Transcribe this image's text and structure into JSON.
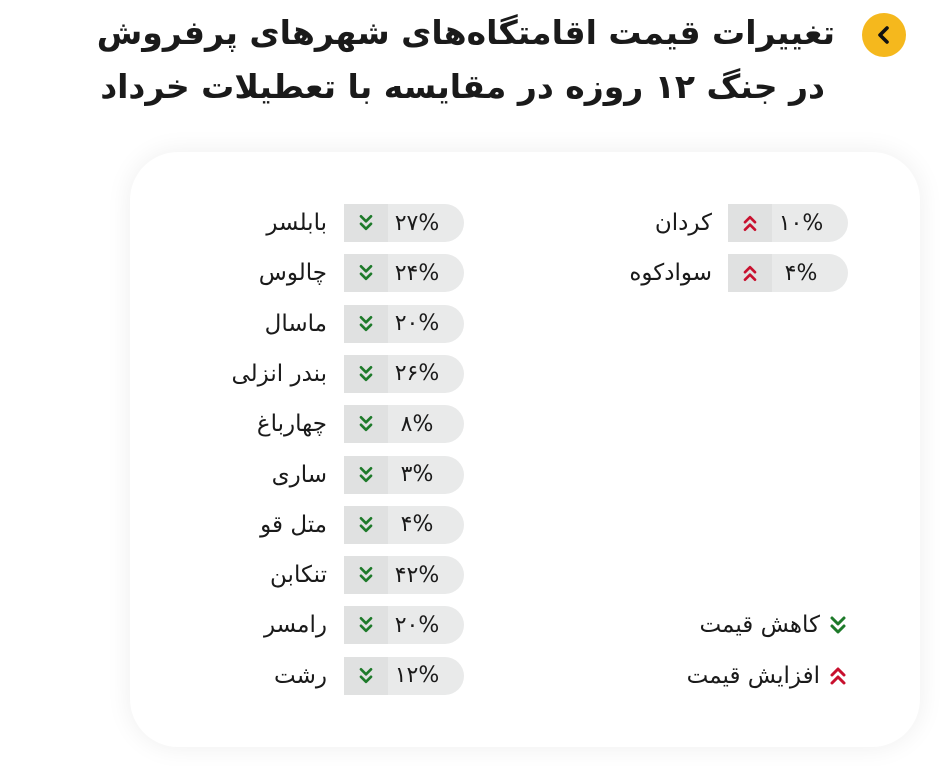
{
  "header": {
    "title_line1": "تغییرات قیمت اقامتگاه‌های شهرهای پرفروش",
    "title_line2": "در جنگ ۱۲ روزه در مقایسه با تعطیلات خرداد",
    "back_icon": "chevron-left-icon",
    "accent_color": "#f5b81d"
  },
  "chart_data": {
    "type": "table",
    "title": "تغییرات قیمت اقامتگاه‌های شهرهای پرفروش در جنگ ۱۲ روزه در مقایسه با تعطیلات خرداد",
    "decrease": [
      {
        "city": "بابلسر",
        "value": 27,
        "label": "۲۷%"
      },
      {
        "city": "چالوس",
        "value": 24,
        "label": "۲۴%"
      },
      {
        "city": "ماسال",
        "value": 20,
        "label": "۲۰%"
      },
      {
        "city": "بندر انزلی",
        "value": 26,
        "label": "۲۶%"
      },
      {
        "city": "چهارباغ",
        "value": 8,
        "label": "۸%"
      },
      {
        "city": "ساری",
        "value": 3,
        "label": "۳%"
      },
      {
        "city": "متل قو",
        "value": 4,
        "label": "۴%"
      },
      {
        "city": "تنکابن",
        "value": 42,
        "label": "۴۲%"
      },
      {
        "city": "رامسر",
        "value": 20,
        "label": "۲۰%"
      },
      {
        "city": "رشت",
        "value": 12,
        "label": "۱۲%"
      }
    ],
    "increase": [
      {
        "city": "کردان",
        "value": 10,
        "label": "۱۰%"
      },
      {
        "city": "سوادکوه",
        "value": 4,
        "label": "۴%"
      }
    ],
    "colors": {
      "decrease": "#1e7a2a",
      "increase": "#c8102e",
      "pill": "#e9eaea"
    }
  },
  "legend": {
    "decrease_label": "کاهش قیمت",
    "increase_label": "افزایش قیمت",
    "decrease_icon": "double-chevron-down-icon",
    "increase_icon": "double-chevron-up-icon"
  }
}
